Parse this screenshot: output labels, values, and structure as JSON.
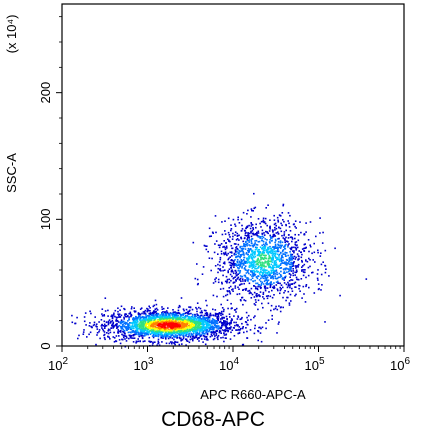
{
  "chart_data": {
    "type": "scatter",
    "style": "density-dot-plot",
    "xlabel": "APC R660-APC-A",
    "ylabel": "SSC-A",
    "y_multiplier": "(x 10⁴)",
    "x_scale": "log",
    "y_scale": "linear",
    "xlim": [
      100,
      1000000
    ],
    "ylim": [
      0,
      270
    ],
    "x_ticks": [
      {
        "value": 100,
        "base": "10",
        "exp": "2"
      },
      {
        "value": 1000,
        "base": "10",
        "exp": "3"
      },
      {
        "value": 10000,
        "base": "10",
        "exp": "4"
      },
      {
        "value": 100000,
        "base": "10",
        "exp": "5"
      },
      {
        "value": 1000000,
        "base": "10",
        "exp": "6"
      }
    ],
    "y_ticks": [
      {
        "value": 0,
        "label": "0"
      },
      {
        "value": 100,
        "label": "100"
      },
      {
        "value": 200,
        "label": "200"
      }
    ],
    "populations": [
      {
        "center_log_x": 3.25,
        "center_y": 17,
        "spread_log_x": 0.38,
        "spread_y": 6,
        "density": "high"
      },
      {
        "center_log_x": 4.35,
        "center_y": 68,
        "spread_log_x": 0.28,
        "spread_y": 16,
        "density": "medium"
      }
    ],
    "density_colors": [
      "#0000cc",
      "#0070ff",
      "#00c8ff",
      "#30e080",
      "#ffff00",
      "#ff8000",
      "#ff0000"
    ],
    "grid": false,
    "legend": "none"
  },
  "caption": "CD68-APC"
}
